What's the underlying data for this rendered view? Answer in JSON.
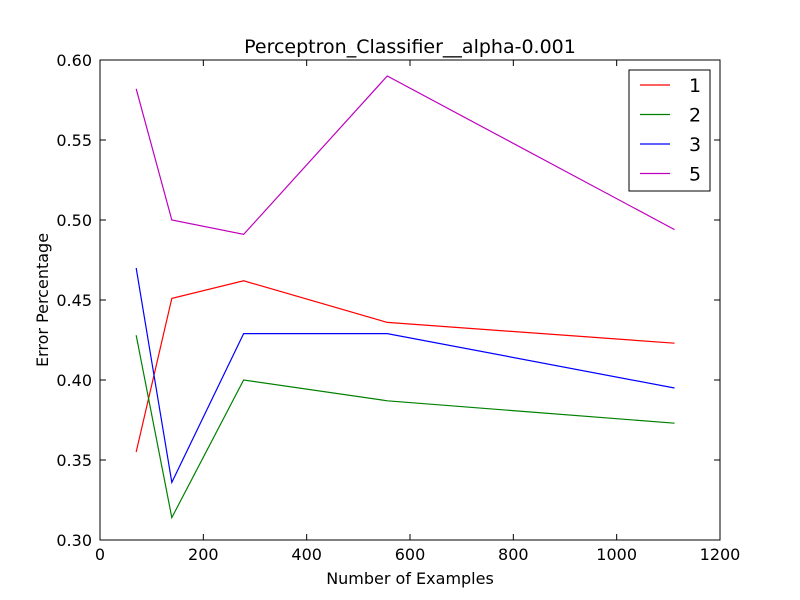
{
  "chart_data": {
    "type": "line",
    "title": "Perceptron_Classifier__alpha-0.001",
    "xlabel": "Number of Examples",
    "ylabel": "Error Percentage",
    "xlim": [
      0,
      1200
    ],
    "ylim": [
      0.3,
      0.6
    ],
    "xticks": [
      0,
      200,
      400,
      600,
      800,
      1000,
      1200
    ],
    "yticks": [
      0.3,
      0.35,
      0.4,
      0.45,
      0.5,
      0.55,
      0.6
    ],
    "xtick_labels": [
      "0",
      "200",
      "400",
      "600",
      "800",
      "1000",
      "1200"
    ],
    "ytick_labels": [
      "0.30",
      "0.35",
      "0.40",
      "0.45",
      "0.50",
      "0.55",
      "0.60"
    ],
    "grid": false,
    "legend_position": "top-right",
    "x": [
      70,
      139,
      278,
      556,
      1112
    ],
    "series": [
      {
        "name": "1",
        "color": "#ff0000",
        "values": [
          0.355,
          0.451,
          0.462,
          0.436,
          0.423
        ]
      },
      {
        "name": "2",
        "color": "#008000",
        "values": [
          0.428,
          0.314,
          0.4,
          0.387,
          0.373
        ]
      },
      {
        "name": "3",
        "color": "#0000ff",
        "values": [
          0.47,
          0.336,
          0.429,
          0.429,
          0.395
        ]
      },
      {
        "name": "5",
        "color": "#bf00bf",
        "values": [
          0.582,
          0.5,
          0.491,
          0.59,
          0.494
        ]
      }
    ]
  }
}
